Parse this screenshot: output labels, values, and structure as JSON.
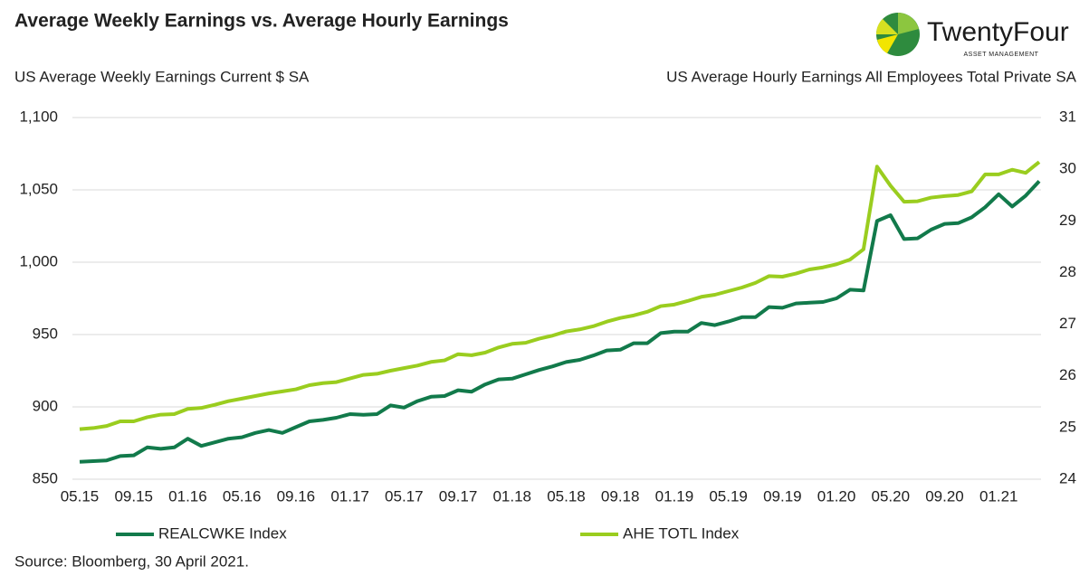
{
  "chart_data": {
    "type": "line",
    "title": "Average Weekly Earnings vs. Average Hourly Earnings",
    "y_label": "US Average Weekly Earnings Current $ SA",
    "y2_label": "US Average Hourly Earnings All Employees Total Private SA",
    "source": "Source: Bloomberg, 30 April 2021.",
    "categories": [
      "05.15",
      null,
      null,
      null,
      "09.15",
      null,
      null,
      null,
      "01.16",
      null,
      null,
      null,
      "05.16",
      null,
      null,
      null,
      "09.16",
      null,
      null,
      null,
      "01.17",
      null,
      null,
      null,
      "05.17",
      null,
      null,
      null,
      "09.17",
      null,
      null,
      null,
      "01.18",
      null,
      null,
      null,
      "05.18",
      null,
      null,
      null,
      "09.18",
      null,
      null,
      null,
      "01.19",
      null,
      null,
      null,
      "05.19",
      null,
      null,
      null,
      "09.19",
      null,
      null,
      null,
      "01.20",
      null,
      null,
      null,
      "05.20",
      null,
      null,
      null,
      "09.20",
      null,
      null,
      null,
      "01.21",
      null,
      null,
      null
    ],
    "ylim": [
      850,
      1100
    ],
    "yticks": [
      {
        "value": 850,
        "label": "850"
      },
      {
        "value": 900,
        "label": "900"
      },
      {
        "value": 950,
        "label": "950"
      },
      {
        "value": 1000,
        "label": "1,000"
      },
      {
        "value": 1050,
        "label": "1,050"
      },
      {
        "value": 1100,
        "label": "1,100"
      }
    ],
    "y2lim": [
      24,
      31
    ],
    "y2ticks": [
      24,
      25,
      26,
      27,
      28,
      29,
      30,
      31
    ],
    "grid": true,
    "series": [
      {
        "name": "REALCWKE Index",
        "color": "#127a4b",
        "values": [
          862,
          862.5,
          863,
          866,
          866.5,
          872,
          871,
          872,
          878,
          873,
          875.5,
          878,
          879,
          882,
          884,
          882,
          886,
          890,
          891,
          892.5,
          895,
          894.5,
          895,
          901,
          899.5,
          904,
          907,
          907.5,
          911.5,
          910.5,
          915.5,
          919,
          919.5,
          922.5,
          925.5,
          928,
          931,
          932.5,
          935.5,
          939,
          939.5,
          944,
          944,
          951,
          952,
          952,
          958,
          956.5,
          959,
          962,
          962,
          969,
          968.5,
          971.5,
          972,
          972.5,
          975,
          981,
          980.5,
          1028.5,
          1032.5,
          1016,
          1016.5,
          1022.5,
          1026.5,
          1027,
          1031,
          1038,
          1047,
          1038.5,
          1046,
          1056
        ]
      },
      {
        "name": "AHE TOTL Index",
        "color": "#9acd1f",
        "axis": "y2",
        "values": [
          24.97,
          24.99,
          25.03,
          25.12,
          25.12,
          25.2,
          25.25,
          25.26,
          25.36,
          25.38,
          25.44,
          25.51,
          25.56,
          25.61,
          25.66,
          25.7,
          25.74,
          25.82,
          25.86,
          25.88,
          25.95,
          26.02,
          26.04,
          26.1,
          26.15,
          26.2,
          26.27,
          26.3,
          26.42,
          26.4,
          26.45,
          26.55,
          26.62,
          26.64,
          26.72,
          26.78,
          26.86,
          26.9,
          26.96,
          27.05,
          27.12,
          27.17,
          27.24,
          27.35,
          27.38,
          27.45,
          27.53,
          27.57,
          27.64,
          27.71,
          27.8,
          27.93,
          27.92,
          27.98,
          28.06,
          28.1,
          28.16,
          28.25,
          28.45,
          30.05,
          29.68,
          29.37,
          29.38,
          29.45,
          29.48,
          29.5,
          29.57,
          29.9,
          29.9,
          29.99,
          29.93,
          30.14
        ]
      }
    ]
  },
  "logo": {
    "name": "TwentyFour",
    "tagline": "ASSET MANAGEMENT"
  }
}
